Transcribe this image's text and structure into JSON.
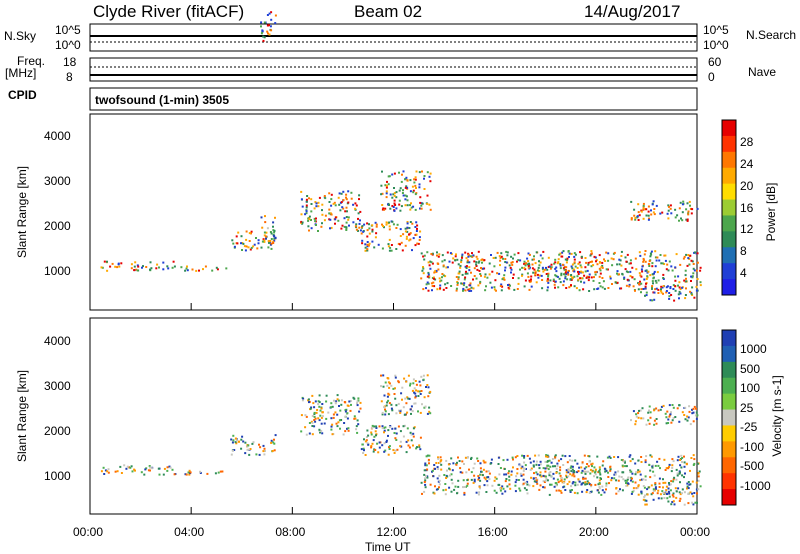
{
  "header": {
    "station": "Clyde River (fitACF)",
    "beam": "Beam 02",
    "date": "14/Aug/2017"
  },
  "top_panels": {
    "nsky_label": "N.Sky",
    "nsearch_label": "N.Search",
    "noise_ticks_left": [
      "10^5",
      "10^0"
    ],
    "noise_ticks_right": [
      "10^5",
      "10^0"
    ],
    "freq_label_1": "Freq.",
    "freq_label_2": "[MHz]",
    "freq_ticks": [
      "18",
      "8"
    ],
    "nave_label": "Nave",
    "nave_ticks": [
      "60",
      "0"
    ],
    "cpid_label": "CPID",
    "cpid_text": "twofsound (1-min) 3505"
  },
  "chart_data": [
    {
      "type": "heatmap",
      "parameter": "Power",
      "ylabel": "Slant Range [km]",
      "colorbar_label": "Power [dB]",
      "ylim": [
        180,
        4500
      ],
      "yticks": [
        "4000",
        "3000",
        "2000",
        "1000"
      ],
      "colorbar_ticks": [
        "28",
        "24",
        "20",
        "16",
        "12",
        "8",
        "4"
      ],
      "colors": {
        "low": "#1f1fe6",
        "high": "#e60000"
      }
    },
    {
      "type": "heatmap",
      "parameter": "Velocity",
      "ylabel": "Slant Range [km]",
      "colorbar_label": "Velocity [m s-1]",
      "ylim": [
        180,
        4500
      ],
      "yticks": [
        "4000",
        "3000",
        "2000",
        "1000"
      ],
      "colorbar_ticks": [
        "1000",
        "500",
        "100",
        "25",
        "-25",
        "-100",
        "-500",
        "-1000"
      ],
      "colors": {
        "positive": "#1f3fb3",
        "ground": "#c8c8c0",
        "negative": "#e60000"
      }
    }
  ],
  "xaxis": {
    "ticks": [
      "00:00",
      "04:00",
      "08:00",
      "12:00",
      "16:00",
      "20:00",
      "00:00"
    ],
    "label": "Time UT"
  }
}
